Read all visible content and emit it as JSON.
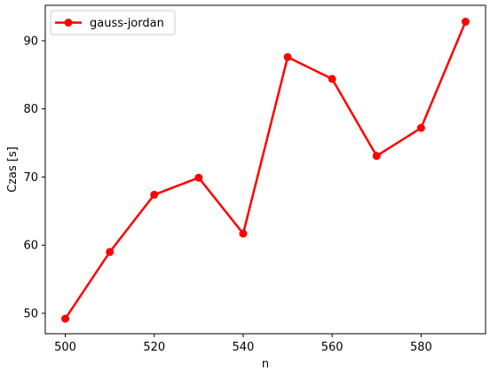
{
  "chart_data": {
    "type": "line",
    "title": "",
    "xlabel": "n",
    "ylabel": "Czas [s]",
    "xlim": [
      495.5,
      594.5
    ],
    "ylim": [
      47,
      95.2
    ],
    "xticks": [
      500,
      520,
      540,
      560,
      580
    ],
    "yticks": [
      50,
      60,
      70,
      80,
      90
    ],
    "grid": false,
    "legend_position": "top-left",
    "series": [
      {
        "name": "gauss-jordan",
        "color": "#ff0000",
        "marker": "circle",
        "x": [
          500,
          510,
          520,
          530,
          540,
          550,
          560,
          570,
          580,
          590
        ],
        "y": [
          49.2,
          59.0,
          67.4,
          69.9,
          61.7,
          87.6,
          84.4,
          73.1,
          77.2,
          92.8
        ]
      }
    ]
  }
}
